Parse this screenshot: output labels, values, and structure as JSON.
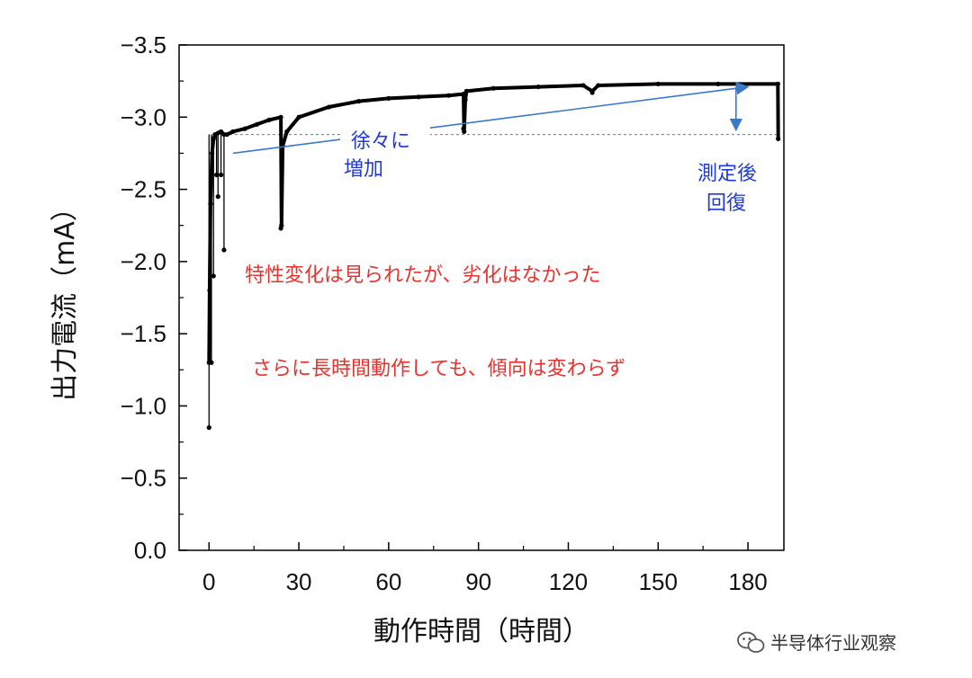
{
  "chart_data": {
    "type": "line",
    "xlabel": "動作時間（時間）",
    "ylabel": "出力電流（mA）",
    "xlim": [
      -10,
      192
    ],
    "ylim": [
      0.0,
      -3.5
    ],
    "x_ticks": [
      "0",
      "30",
      "60",
      "90",
      "120",
      "150",
      "180"
    ],
    "y_ticks": [
      "0.0",
      "−0.5",
      "−1.0",
      "−1.5",
      "−2.0",
      "−2.5",
      "−3.0",
      "−3.5"
    ],
    "grid": false,
    "series": [
      {
        "color": "#000000",
        "x": [
          0,
          0.2,
          0.5,
          1,
          1.5,
          2,
          3,
          4,
          5,
          6,
          8,
          12,
          16,
          20,
          24,
          24.2,
          24.6,
          26,
          30,
          40,
          50,
          60,
          70,
          80,
          85,
          85.2,
          85.6,
          86,
          95,
          110,
          125,
          128,
          130,
          150,
          170,
          190,
          190.1
        ],
        "y": [
          -1.3,
          -1.8,
          -2.4,
          -2.75,
          -2.85,
          -2.88,
          -2.89,
          -2.9,
          -2.88,
          -2.88,
          -2.9,
          -2.92,
          -2.95,
          -2.98,
          -3.0,
          -2.25,
          -2.8,
          -2.9,
          -3.0,
          -3.07,
          -3.11,
          -3.13,
          -3.14,
          -3.15,
          -3.16,
          -2.9,
          -3.12,
          -3.18,
          -3.2,
          -3.21,
          -3.22,
          -3.18,
          -3.22,
          -3.23,
          -3.23,
          -3.23,
          -2.85
        ]
      }
    ],
    "dips": [
      {
        "x": 0,
        "y": -0.85
      },
      {
        "x": 0.8,
        "y": -1.3
      },
      {
        "x": 1.5,
        "y": -1.9
      },
      {
        "x": 2.5,
        "y": -2.6
      },
      {
        "x": 3,
        "y": -2.45
      },
      {
        "x": 4,
        "y": -2.6
      },
      {
        "x": 5,
        "y": -2.08
      },
      {
        "x": 24,
        "y": -2.23
      },
      {
        "x": 85,
        "y": -2.92
      },
      {
        "x": 128,
        "y": -3.17
      }
    ],
    "reference_line": {
      "y": -2.88,
      "x_start": 5,
      "x_end": 190,
      "color": "#5b8bd6"
    },
    "trend_arrows": [
      {
        "x1": 8,
        "y1": -2.75,
        "x2": 180,
        "y2": -3.21,
        "color": "#3a78c8"
      },
      {
        "x1": 176,
        "y1": -3.21,
        "x2": 176,
        "y2": -2.91,
        "color": "#3a78c8"
      }
    ],
    "annotations": {
      "gradual_line1": "徐々に",
      "gradual_line2": "増加",
      "recovery_line1": "測定後",
      "recovery_line2": "回復",
      "note1": "特性変化は見られたが、劣化はなかった",
      "note2": "さらに長時間動作しても、傾向は変わらず"
    }
  },
  "watermark": {
    "text": "半导体行业观察",
    "icon": "wechat-icon"
  }
}
